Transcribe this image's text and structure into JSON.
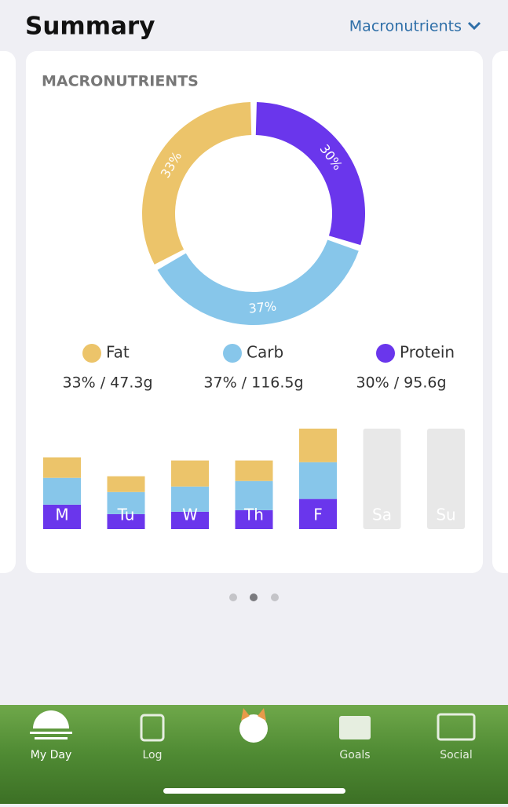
{
  "header": {
    "title": "Summary",
    "selector": "Macronutrients"
  },
  "card": {
    "title": "MACRONUTRIENTS"
  },
  "chart_data": [
    {
      "type": "pie",
      "donut": true,
      "categories": [
        "Fat",
        "Carb",
        "Protein"
      ],
      "values": [
        33,
        37,
        30
      ],
      "value_labels": [
        "33%",
        "37%",
        "30%"
      ],
      "colors": [
        "#ecc46a",
        "#87c6ea",
        "#6a36ec"
      ],
      "details": [
        "33% / 47.3g",
        "37% / 116.5g",
        "30% / 95.6g"
      ]
    },
    {
      "type": "bar",
      "stacked": true,
      "categories": [
        "M",
        "Tu",
        "W",
        "Th",
        "F",
        "Sa",
        "Su"
      ],
      "series": [
        {
          "color": "#ecc46a",
          "values": [
            260,
            200,
            330,
            260,
            426,
            null,
            null
          ]
        },
        {
          "color": "#87c6ea",
          "values": [
            340,
            280,
            320,
            370,
            466,
            null,
            null
          ]
        },
        {
          "color": "#6a36ec",
          "values": [
            310,
            190,
            220,
            240,
            382,
            null,
            null
          ]
        }
      ]
    }
  ],
  "nav": {
    "items": [
      "My Day",
      "Log",
      "Goals",
      "Social"
    ]
  }
}
